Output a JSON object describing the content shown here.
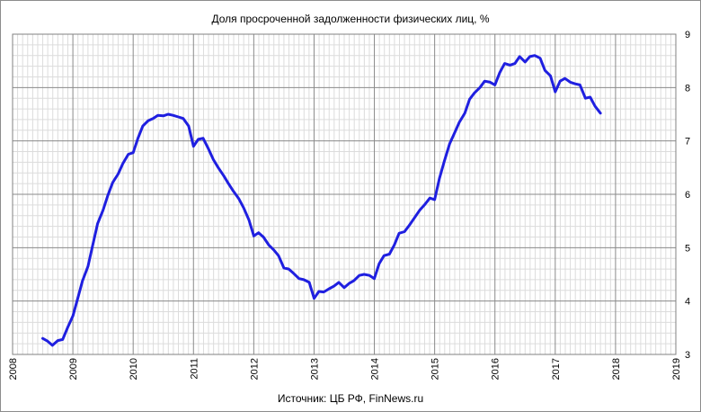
{
  "chart_data": {
    "type": "line",
    "title": "Доля просроченной задолженности физических лиц, %",
    "source": "Источник: ЦБ РФ, FinNews.ru",
    "xlabel": "",
    "ylabel": "",
    "xlim": [
      2008,
      2019
    ],
    "ylim": [
      3,
      9
    ],
    "x_ticks": [
      "2008",
      "2009",
      "2010",
      "2011",
      "2012",
      "2013",
      "2014",
      "2015",
      "2016",
      "2017",
      "2018",
      "2019"
    ],
    "y_ticks": [
      "3",
      "4",
      "5",
      "6",
      "7",
      "8",
      "9"
    ],
    "y_axis_side": "right",
    "grid": true,
    "legend": "none",
    "line_color": "#1f1fe0",
    "series": [
      {
        "x": [
          2008.5,
          2008.58,
          2008.66,
          2008.75,
          2008.83,
          2008.92,
          2009.0,
          2009.08,
          2009.16,
          2009.25,
          2009.33,
          2009.41,
          2009.5,
          2009.58,
          2009.66,
          2009.75,
          2009.83,
          2009.92,
          2010.0,
          2010.08,
          2010.16,
          2010.25,
          2010.33,
          2010.41,
          2010.5,
          2010.58,
          2010.66,
          2010.75,
          2010.83,
          2010.92,
          2011.0,
          2011.08,
          2011.16,
          2011.25,
          2011.33,
          2011.41,
          2011.5,
          2011.58,
          2011.66,
          2011.75,
          2011.83,
          2011.92,
          2012.0,
          2012.08,
          2012.16,
          2012.25,
          2012.33,
          2012.41,
          2012.5,
          2012.58,
          2012.66,
          2012.75,
          2012.83,
          2012.92,
          2013.0,
          2013.08,
          2013.16,
          2013.25,
          2013.33,
          2013.41,
          2013.5,
          2013.58,
          2013.66,
          2013.75,
          2013.83,
          2013.92,
          2014.0,
          2014.08,
          2014.16,
          2014.25,
          2014.33,
          2014.41,
          2014.5,
          2014.58,
          2014.66,
          2014.75,
          2014.83,
          2014.92,
          2015.0,
          2015.08,
          2015.16,
          2015.25,
          2015.33,
          2015.41,
          2015.5,
          2015.58,
          2015.66,
          2015.75,
          2015.83,
          2015.92,
          2016.0,
          2016.08,
          2016.16,
          2016.25,
          2016.33,
          2016.41,
          2016.5,
          2016.58,
          2016.66,
          2016.75,
          2016.83,
          2016.92,
          2017.0,
          2017.08,
          2017.16,
          2017.25,
          2017.33,
          2017.41,
          2017.5,
          2017.58,
          2017.66,
          2017.75
        ],
        "y": [
          3.3,
          3.25,
          3.17,
          3.26,
          3.28,
          3.52,
          3.72,
          4.05,
          4.38,
          4.65,
          5.05,
          5.45,
          5.7,
          5.98,
          6.22,
          6.38,
          6.58,
          6.75,
          6.78,
          7.05,
          7.28,
          7.38,
          7.42,
          7.48,
          7.47,
          7.5,
          7.48,
          7.45,
          7.42,
          7.28,
          6.9,
          7.03,
          7.05,
          6.85,
          6.65,
          6.5,
          6.35,
          6.2,
          6.06,
          5.92,
          5.75,
          5.52,
          5.22,
          5.28,
          5.2,
          5.05,
          4.96,
          4.85,
          4.62,
          4.6,
          4.52,
          4.42,
          4.4,
          4.35,
          4.05,
          4.18,
          4.17,
          4.23,
          4.28,
          4.35,
          4.25,
          4.33,
          4.38,
          4.48,
          4.5,
          4.48,
          4.42,
          4.7,
          4.85,
          4.88,
          5.05,
          5.27,
          5.3,
          5.42,
          5.55,
          5.7,
          5.8,
          5.93,
          5.9,
          6.3,
          6.62,
          6.95,
          7.15,
          7.35,
          7.52,
          7.78,
          7.9,
          8.0,
          8.12,
          8.1,
          8.05,
          8.28,
          8.45,
          8.42,
          8.45,
          8.58,
          8.48,
          8.58,
          8.6,
          8.55,
          8.32,
          8.22,
          7.92,
          8.12,
          8.17,
          8.1,
          8.07,
          8.05,
          7.8,
          7.82,
          7.65,
          7.52
        ]
      }
    ]
  }
}
